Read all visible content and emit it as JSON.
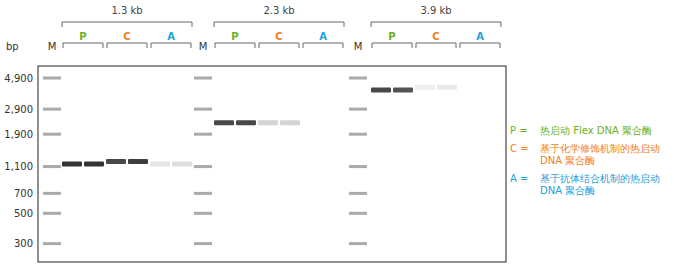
{
  "chart_data": {
    "type": "gel",
    "y_label": "bp",
    "marker_label": "M",
    "log": "y",
    "ylim": [
      220,
      6000
    ],
    "yticks": [
      {
        "value": 4900,
        "label": "4,900"
      },
      {
        "value": 2900,
        "label": "2,900"
      },
      {
        "value": 1900,
        "label": "1,900"
      },
      {
        "value": 1100,
        "label": "1,100"
      },
      700,
      500,
      300
    ],
    "enzymes": [
      {
        "code": "P",
        "legend_key": "P =",
        "name": "热启动 Flex DNA 聚合酶",
        "color": "#6ab023"
      },
      {
        "code": "C",
        "legend_key": "C =",
        "name": "基于化学修饰机制的热启动 DNA 聚合酶",
        "color": "#f07d1e"
      },
      {
        "code": "A",
        "legend_key": "A =",
        "name": "基于抗体结合机制的热启动 DNA 聚合酶",
        "color": "#1ea0dc"
      }
    ],
    "groups": [
      {
        "label": "1.3 kb",
        "lanes": [
          {
            "enzyme": "P",
            "size": 1150,
            "intensity": 0.95
          },
          {
            "enzyme": "P",
            "size": 1150,
            "intensity": 0.95
          },
          {
            "enzyme": "C",
            "size": 1200,
            "intensity": 0.85
          },
          {
            "enzyme": "C",
            "size": 1200,
            "intensity": 0.9
          },
          {
            "enzyme": "A",
            "size": 1150,
            "intensity": 0.12
          },
          {
            "enzyme": "A",
            "size": 1150,
            "intensity": 0.15
          }
        ]
      },
      {
        "label": "2.3 kb",
        "lanes": [
          {
            "enzyme": "P",
            "size": 2300,
            "intensity": 0.85
          },
          {
            "enzyme": "P",
            "size": 2300,
            "intensity": 0.85
          },
          {
            "enzyme": "C",
            "size": 2300,
            "intensity": 0.2
          },
          {
            "enzyme": "C",
            "size": 2300,
            "intensity": 0.2
          },
          {
            "enzyme": "A",
            "size": null,
            "intensity": null
          },
          {
            "enzyme": "A",
            "size": null,
            "intensity": null
          }
        ]
      },
      {
        "label": "3.9 kb",
        "lanes": [
          {
            "enzyme": "P",
            "size": 4000,
            "intensity": 0.85
          },
          {
            "enzyme": "P",
            "size": 4000,
            "intensity": 0.8
          },
          {
            "enzyme": "C",
            "size": 4200,
            "intensity": 0.08
          },
          {
            "enzyme": "C",
            "size": 4200,
            "intensity": 0.1
          },
          {
            "enzyme": "A",
            "size": null,
            "intensity": null
          },
          {
            "enzyme": "A",
            "size": null,
            "intensity": null
          }
        ]
      }
    ]
  }
}
